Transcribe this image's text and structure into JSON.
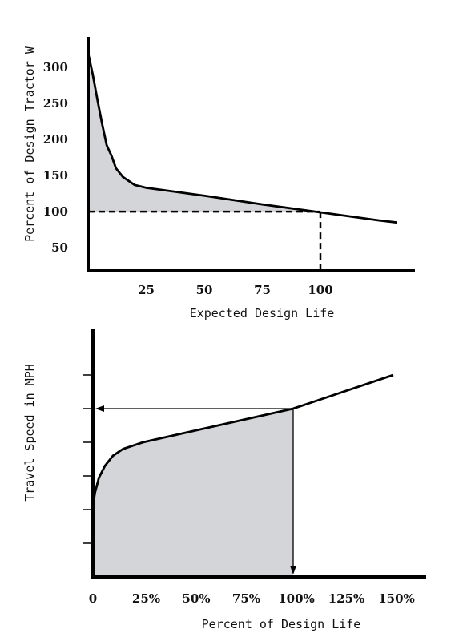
{
  "chart_data": [
    {
      "type": "area",
      "ylabel": "Percent of Design Tractor W",
      "xlabel": "Expected Design Life",
      "x_ticks": [
        "25",
        "50",
        "75",
        "100"
      ],
      "y_ticks": [
        "50",
        "100",
        "150",
        "200",
        "250",
        "300"
      ],
      "xlim": [
        0,
        140
      ],
      "ylim": [
        18,
        335
      ],
      "curve": [
        {
          "x": 0,
          "y": 320
        },
        {
          "x": 2,
          "y": 290
        },
        {
          "x": 4,
          "y": 255
        },
        {
          "x": 6,
          "y": 222
        },
        {
          "x": 8,
          "y": 192
        },
        {
          "x": 10,
          "y": 178
        },
        {
          "x": 12,
          "y": 160
        },
        {
          "x": 15,
          "y": 148
        },
        {
          "x": 20,
          "y": 137
        },
        {
          "x": 25,
          "y": 133
        },
        {
          "x": 50,
          "y": 122
        },
        {
          "x": 75,
          "y": 110
        },
        {
          "x": 100,
          "y": 99
        },
        {
          "x": 125,
          "y": 88
        },
        {
          "x": 133,
          "y": 85
        }
      ],
      "reference": {
        "x": 100,
        "y": 100
      },
      "shaded_range": [
        0,
        100
      ],
      "grid": false
    },
    {
      "type": "area",
      "ylabel": "Travel Speed in MPH",
      "xlabel": "Percent of Design Life",
      "x_ticks": [
        "0",
        "25%",
        "50%",
        "75%",
        "100%",
        "125%",
        "150%"
      ],
      "xlim": [
        0,
        150
      ],
      "ylim": [
        0,
        7
      ],
      "curve": [
        {
          "x": 0,
          "y": 2.1
        },
        {
          "x": 1,
          "y": 2.5
        },
        {
          "x": 3,
          "y": 2.95
        },
        {
          "x": 6,
          "y": 3.3
        },
        {
          "x": 10,
          "y": 3.6
        },
        {
          "x": 15,
          "y": 3.8
        },
        {
          "x": 20,
          "y": 3.9
        },
        {
          "x": 25,
          "y": 4.0
        },
        {
          "x": 100,
          "y": 5.0
        },
        {
          "x": 150,
          "y": 6.0
        }
      ],
      "reference": {
        "x": 100,
        "y": 5.0
      },
      "shaded_range": [
        0,
        100
      ],
      "grid": false
    }
  ]
}
